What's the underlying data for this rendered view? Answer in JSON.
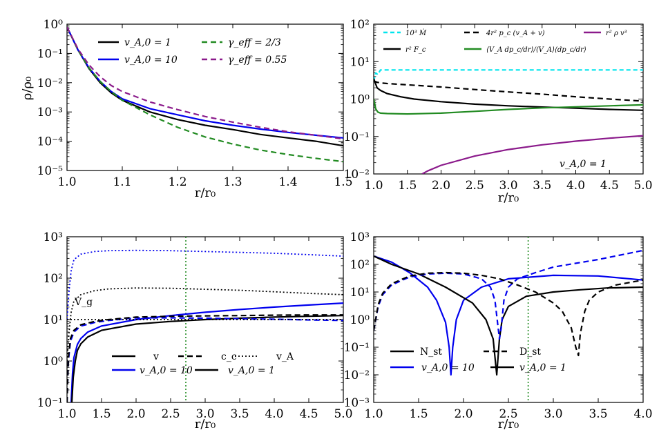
{
  "chart_data": [
    {
      "type": "line",
      "id": "density",
      "xlabel": "r/r₀",
      "ylabel": "ρ/ρ₀",
      "xlim": [
        1.0,
        1.5
      ],
      "ylim_log10": [
        -5,
        0
      ],
      "xticks": [
        "1.0",
        "1.1",
        "1.2",
        "1.3",
        "1.4",
        "1.5"
      ],
      "yticks": [
        "10⁻⁵",
        "10⁻⁴",
        "10⁻³",
        "10⁻²",
        "10⁻¹",
        "10⁰"
      ],
      "legend_position": "top",
      "series": [
        {
          "name": "v_A,0 = 1",
          "color": "#000000",
          "dash": "",
          "width": 2.2,
          "x": [
            1.0,
            1.02,
            1.04,
            1.06,
            1.08,
            1.1,
            1.15,
            1.2,
            1.25,
            1.3,
            1.35,
            1.4,
            1.45,
            1.5
          ],
          "y": [
            0.8,
            0.13,
            0.03,
            0.01,
            0.0045,
            0.0025,
            0.001,
            0.00055,
            0.00035,
            0.00025,
            0.00017,
            0.00013,
            0.0001,
            7e-05
          ]
        },
        {
          "name": "v_A,0 = 10",
          "color": "#0000ee",
          "dash": "",
          "width": 2.2,
          "x": [
            1.0,
            1.02,
            1.04,
            1.06,
            1.08,
            1.1,
            1.15,
            1.2,
            1.25,
            1.3,
            1.35,
            1.4,
            1.45,
            1.5
          ],
          "y": [
            0.8,
            0.13,
            0.032,
            0.011,
            0.005,
            0.0028,
            0.0013,
            0.0008,
            0.0005,
            0.00035,
            0.00026,
            0.0002,
            0.00016,
            0.00013
          ]
        },
        {
          "name": "γ_eff = 2/3",
          "color": "#228b22",
          "dash": "8,5",
          "width": 2.2,
          "x": [
            1.0,
            1.02,
            1.04,
            1.06,
            1.08,
            1.1,
            1.15,
            1.2,
            1.25,
            1.3,
            1.35,
            1.4,
            1.45,
            1.5
          ],
          "y": [
            0.8,
            0.13,
            0.032,
            0.011,
            0.005,
            0.0025,
            0.0008,
            0.0003,
            0.00014,
            8e-05,
            5e-05,
            3.5e-05,
            2.6e-05,
            2e-05
          ]
        },
        {
          "name": "γ_eff = 0.55",
          "color": "#8b1a8b",
          "dash": "8,5",
          "width": 2.2,
          "x": [
            1.0,
            1.02,
            1.04,
            1.06,
            1.08,
            1.1,
            1.15,
            1.2,
            1.25,
            1.3,
            1.35,
            1.4,
            1.45,
            1.5
          ],
          "y": [
            0.8,
            0.14,
            0.04,
            0.016,
            0.008,
            0.005,
            0.0022,
            0.0012,
            0.0007,
            0.00045,
            0.0003,
            0.00021,
            0.00016,
            0.00012
          ]
        }
      ]
    },
    {
      "type": "line",
      "id": "fluxes",
      "xlabel": "r/r₀",
      "ylabel": "",
      "xlim": [
        1.0,
        5.0
      ],
      "ylim_log10": [
        -2,
        2
      ],
      "xticks": [
        "1.0",
        "1.5",
        "2.0",
        "2.5",
        "3.0",
        "3.5",
        "4.0",
        "4.5",
        "5.0"
      ],
      "yticks": [
        "10⁻²",
        "10⁻¹",
        "10⁰",
        "10¹",
        "10²"
      ],
      "annotation": "v_A,0 = 1",
      "legend_position": "top",
      "series": [
        {
          "name": "10³ Ṁ",
          "color": "#00e5ee",
          "dash": "6,4",
          "width": 2.2,
          "x": [
            1.0,
            1.03,
            1.06,
            1.1,
            1.2,
            1.5,
            2.0,
            3.0,
            4.0,
            5.0
          ],
          "y": [
            3.0,
            5.0,
            4.5,
            6.0,
            6.0,
            6.0,
            6.0,
            6.0,
            6.0,
            6.0
          ]
        },
        {
          "name": "r² F_c",
          "color": "#000000",
          "dash": "",
          "width": 2.2,
          "x": [
            1.0,
            1.05,
            1.1,
            1.2,
            1.4,
            1.6,
            2.0,
            2.5,
            3.0,
            3.5,
            4.0,
            4.5,
            5.0
          ],
          "y": [
            3.5,
            2.0,
            1.7,
            1.4,
            1.15,
            1.0,
            0.85,
            0.73,
            0.66,
            0.61,
            0.57,
            0.53,
            0.5
          ]
        },
        {
          "name": "4r² p_c (v_A + v)",
          "color": "#000000",
          "dash": "8,5",
          "width": 2.2,
          "x": [
            1.0,
            1.05,
            1.1,
            1.2,
            1.5,
            2.0,
            2.5,
            3.0,
            3.5,
            4.0,
            4.5,
            5.0
          ],
          "y": [
            3.0,
            2.8,
            2.7,
            2.6,
            2.4,
            2.1,
            1.8,
            1.55,
            1.35,
            1.15,
            1.0,
            0.88
          ]
        },
        {
          "name": "⟨V_A dp_c/dr⟩/⟨V_A⟩⟨dp_c/dr⟩",
          "color": "#228b22",
          "dash": "",
          "width": 2.2,
          "x": [
            1.0,
            1.03,
            1.06,
            1.1,
            1.2,
            1.5,
            2.0,
            2.5,
            3.0,
            3.5,
            4.0,
            4.5,
            5.0
          ],
          "y": [
            1.0,
            0.55,
            0.45,
            0.42,
            0.41,
            0.4,
            0.42,
            0.47,
            0.53,
            0.58,
            0.62,
            0.66,
            0.7
          ]
        },
        {
          "name": "r² ρ v³",
          "color": "#8b1a8b",
          "dash": "",
          "width": 2.2,
          "x": [
            1.72,
            1.8,
            2.0,
            2.5,
            3.0,
            3.5,
            4.0,
            4.5,
            5.0
          ],
          "y": [
            0.01,
            0.012,
            0.017,
            0.03,
            0.045,
            0.06,
            0.075,
            0.09,
            0.105
          ]
        }
      ]
    },
    {
      "type": "line",
      "id": "velocities",
      "xlabel": "r/r₀",
      "ylabel": "",
      "xlim": [
        1.0,
        5.0
      ],
      "ylim_log10": [
        -1,
        3
      ],
      "xticks": [
        "1.0",
        "1.5",
        "2.0",
        "2.5",
        "3.0",
        "3.5",
        "4.0",
        "4.5",
        "5.0"
      ],
      "yticks": [
        "10⁻¹",
        "10⁰",
        "10¹",
        "10²",
        "10³"
      ],
      "annotation": "V_g",
      "vline_x": 2.72,
      "legend": [
        {
          "label": "v",
          "style": "solid",
          "color": "#000000"
        },
        {
          "label": "c_c",
          "style": "dashed",
          "color": "#000000"
        },
        {
          "label": "v_A",
          "style": "dotted",
          "color": "#000000"
        },
        {
          "label": "v_A,0 = 10",
          "style": "solid",
          "color": "#0000ee"
        },
        {
          "label": "v_A,0 = 1",
          "style": "solid",
          "color": "#000000"
        }
      ],
      "series": [
        {
          "name": "v (v_A,0 = 10)",
          "color": "#0000ee",
          "dash": "",
          "width": 2.2,
          "x": [
            1.06,
            1.08,
            1.1,
            1.15,
            1.2,
            1.3,
            1.5,
            2.0,
            2.5,
            3.0,
            3.5,
            4.0,
            4.5,
            5.0
          ],
          "y": [
            0.1,
            0.5,
            1.2,
            2.5,
            3.5,
            5.0,
            7.0,
            10.0,
            12.5,
            15.0,
            17.5,
            20.0,
            22.5,
            25.0
          ]
        },
        {
          "name": "v (v_A,0 = 1)",
          "color": "#000000",
          "dash": "",
          "width": 2.2,
          "x": [
            1.07,
            1.09,
            1.12,
            1.15,
            1.2,
            1.3,
            1.5,
            2.0,
            2.5,
            3.0,
            3.5,
            4.0,
            4.5,
            5.0
          ],
          "y": [
            0.1,
            0.4,
            1.0,
            1.8,
            2.6,
            3.8,
            5.5,
            7.8,
            9.0,
            10.0,
            10.8,
            11.5,
            12.0,
            12.5
          ]
        },
        {
          "name": "c_c (v_A,0 = 10)",
          "color": "#0000ee",
          "dash": "8,5",
          "width": 2.2,
          "x": [
            1.0,
            1.02,
            1.05,
            1.1,
            1.2,
            1.4,
            1.6,
            2.0,
            2.5,
            3.0,
            3.5,
            4.0,
            4.5,
            5.0
          ],
          "y": [
            0.1,
            1.0,
            3.0,
            5.0,
            7.0,
            8.5,
            9.5,
            11.0,
            11.0,
            10.8,
            10.5,
            10.2,
            9.8,
            9.5
          ]
        },
        {
          "name": "c_c (v_A,0 = 1)",
          "color": "#000000",
          "dash": "8,5",
          "width": 2.2,
          "x": [
            1.0,
            1.02,
            1.05,
            1.1,
            1.2,
            1.4,
            1.6,
            2.0,
            2.5,
            3.0,
            3.5,
            4.0,
            4.5,
            5.0
          ],
          "y": [
            0.1,
            1.2,
            3.5,
            5.5,
            7.5,
            9.0,
            10.0,
            11.5,
            12.0,
            12.3,
            12.5,
            12.8,
            13.0,
            13.0
          ]
        },
        {
          "name": "v_A (v_A,0 = 10)",
          "color": "#0000ee",
          "dash": "2,3",
          "width": 1.8,
          "x": [
            1.0,
            1.03,
            1.06,
            1.1,
            1.2,
            1.4,
            1.6,
            2.0,
            2.5,
            3.0,
            3.5,
            4.0,
            4.5,
            5.0
          ],
          "y": [
            10.0,
            50.0,
            150.0,
            280.0,
            380.0,
            440.0,
            460.0,
            470.0,
            460.0,
            440.0,
            420.0,
            400.0,
            370.0,
            340.0
          ]
        },
        {
          "name": "v_A (v_A,0 = 1)",
          "color": "#000000",
          "dash": "2,3",
          "width": 1.8,
          "x": [
            1.0,
            1.03,
            1.06,
            1.1,
            1.2,
            1.4,
            1.6,
            2.0,
            2.5,
            3.0,
            3.5,
            4.0,
            4.5,
            5.0
          ],
          "y": [
            1.0,
            5.0,
            15.0,
            28.0,
            40.0,
            50.0,
            55.0,
            58.0,
            57.0,
            54.0,
            51.0,
            47.0,
            43.0,
            40.0
          ]
        },
        {
          "name": "V_g",
          "color": "#000000",
          "dash": "2,3",
          "width": 1.8,
          "x": [
            1.0,
            5.0
          ],
          "y": [
            10.0,
            10.0
          ]
        }
      ]
    },
    {
      "type": "line",
      "id": "streaming",
      "xlabel": "r/r₀",
      "ylabel": "",
      "xlim": [
        1.0,
        4.0
      ],
      "ylim_log10": [
        -3,
        3
      ],
      "xticks": [
        "1.0",
        "1.5",
        "2.0",
        "2.5",
        "3.0",
        "3.5",
        "4.0"
      ],
      "yticks": [
        "10⁻³",
        "10⁻²",
        "10⁻¹",
        "10⁰",
        "10¹",
        "10²",
        "10³"
      ],
      "vline_x": 2.72,
      "legend": [
        {
          "label": "N_st",
          "style": "solid",
          "color": "#000000"
        },
        {
          "label": "D_st",
          "style": "dashed",
          "color": "#000000"
        },
        {
          "label": "v_A,0 = 10",
          "style": "solid",
          "color": "#0000ee"
        },
        {
          "label": "v_A,0 = 1",
          "style": "solid",
          "color": "#000000"
        }
      ],
      "series": [
        {
          "name": "N_st (v_A,0 = 10)",
          "color": "#0000ee",
          "dash": "",
          "width": 2.2,
          "x": [
            1.0,
            1.2,
            1.4,
            1.6,
            1.7,
            1.8,
            1.84,
            1.86,
            1.88,
            1.92,
            2.0,
            2.2,
            2.5,
            3.0,
            3.5,
            4.0
          ],
          "y": [
            200.0,
            120.0,
            50.0,
            15.0,
            5.0,
            0.8,
            0.1,
            0.01,
            0.1,
            1.0,
            5.0,
            15.0,
            30.0,
            40.0,
            38.0,
            27.0
          ]
        },
        {
          "name": "N_st (v_A,0 = 1)",
          "color": "#000000",
          "dash": "",
          "width": 2.2,
          "x": [
            1.0,
            1.2,
            1.5,
            1.8,
            2.1,
            2.25,
            2.33,
            2.37,
            2.4,
            2.43,
            2.5,
            2.7,
            3.0,
            3.3,
            3.6,
            4.0
          ],
          "y": [
            200.0,
            100.0,
            45.0,
            15.0,
            4.0,
            1.0,
            0.2,
            0.01,
            0.2,
            1.0,
            3.0,
            7.0,
            10.0,
            12.0,
            14.0,
            15.0
          ]
        },
        {
          "name": "D_st (v_A,0 = 10)",
          "color": "#0000ee",
          "dash": "8,5",
          "width": 2.2,
          "x": [
            1.0,
            1.05,
            1.1,
            1.2,
            1.4,
            1.6,
            1.8,
            2.0,
            2.2,
            2.3,
            2.35,
            2.4,
            2.42,
            2.45,
            2.5,
            2.6,
            2.8,
            3.0,
            3.5,
            4.0
          ],
          "y": [
            0.4,
            3.0,
            8.0,
            18.0,
            35.0,
            45.0,
            48.0,
            45.0,
            30.0,
            15.0,
            5.0,
            0.2,
            0.5,
            5.0,
            15.0,
            30.0,
            50.0,
            80.0,
            150.0,
            320.0
          ]
        },
        {
          "name": "D_st (v_A,0 = 1)",
          "color": "#000000",
          "dash": "8,5",
          "width": 2.2,
          "x": [
            1.0,
            1.05,
            1.1,
            1.2,
            1.4,
            1.6,
            1.8,
            2.0,
            2.2,
            2.4,
            2.6,
            2.8,
            3.0,
            3.1,
            3.2,
            3.25,
            3.28,
            3.3,
            3.35,
            3.4,
            3.5,
            3.7,
            4.0
          ],
          "y": [
            0.4,
            3.5,
            9.0,
            20.0,
            38.0,
            48.0,
            50.0,
            48.0,
            40.0,
            30.0,
            18.0,
            10.0,
            4.0,
            2.0,
            0.5,
            0.1,
            0.05,
            0.3,
            2.0,
            5.0,
            10.0,
            18.0,
            27.0
          ]
        }
      ]
    }
  ],
  "text": {
    "p1": {
      "xlabel": "r/r₀",
      "ylabel": "ρ/ρ₀",
      "l1": "v_A,0 = 1",
      "l2": "v_A,0 = 10",
      "l3": "γ_eff = 2/3",
      "l4": "γ_eff = 0.55"
    },
    "p2": {
      "xlabel": "r/r₀",
      "l1": "10³ Ṁ",
      "l2": "4r² p_c (v_A + v)",
      "l3": "r² ρ v³",
      "l4": "r² F_c",
      "l5": "⟨V_A dp_c/dr⟩/⟨V_A⟩⟨dp_c/dr⟩",
      "annot": "v_A,0 = 1"
    },
    "p3": {
      "xlabel": "r/r₀",
      "annot": "V_g",
      "l1": "v",
      "l2": "c_c",
      "l3": "v_A",
      "l4": "v_A,0 = 10",
      "l5": "v_A,0 = 1"
    },
    "p4": {
      "xlabel": "r/r₀",
      "l1": "N_st",
      "l2": "D_st",
      "l3": "v_A,0 = 10",
      "l4": "v_A,0 = 1"
    }
  }
}
